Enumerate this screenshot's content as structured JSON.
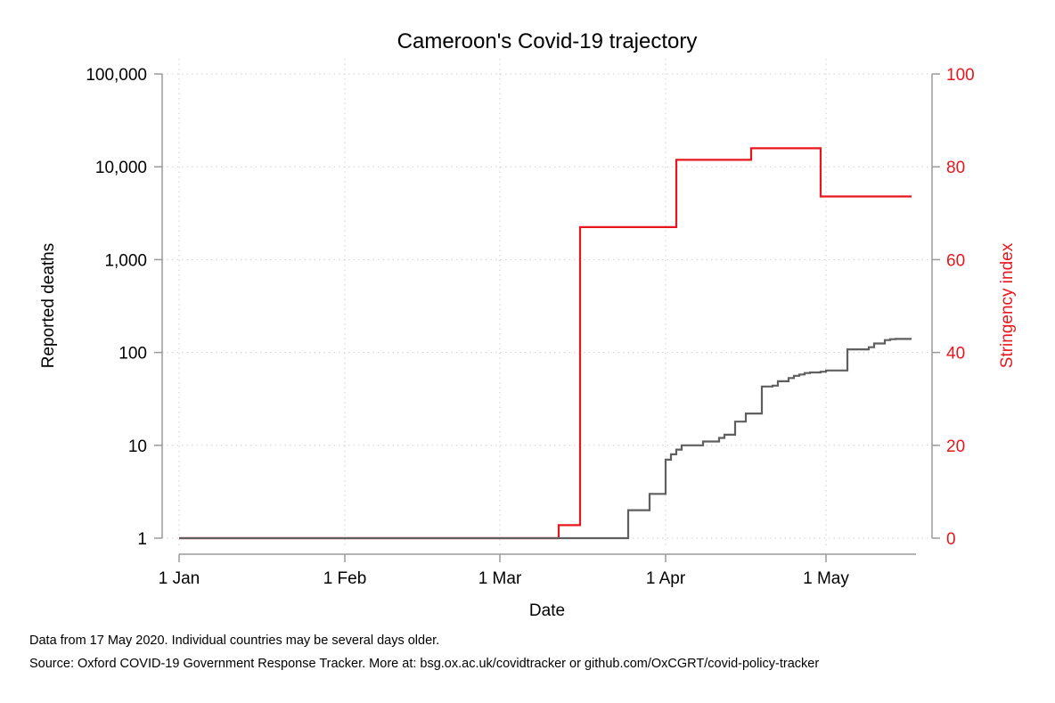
{
  "chart_data": {
    "type": "line",
    "title": "Cameroon's Covid-19 trajectory",
    "xlabel": "Date",
    "ylabel_left": "Reported deaths",
    "ylabel_right": "Stringency index",
    "x_ticks": [
      {
        "label": "1 Jan",
        "date": "2020-01-01"
      },
      {
        "label": "1 Feb",
        "date": "2020-02-01"
      },
      {
        "label": "1 Mar",
        "date": "2020-03-01"
      },
      {
        "label": "1 Apr",
        "date": "2020-04-01"
      },
      {
        "label": "1 May",
        "date": "2020-05-01"
      }
    ],
    "xlim": [
      "2020-01-01",
      "2020-05-17"
    ],
    "y_left": {
      "scale": "log",
      "ylim": [
        1,
        100000
      ],
      "ticks": [
        {
          "value": 1,
          "label": "1"
        },
        {
          "value": 10,
          "label": "10"
        },
        {
          "value": 100,
          "label": "100"
        },
        {
          "value": 1000,
          "label": "1,000"
        },
        {
          "value": 10000,
          "label": "10,000"
        },
        {
          "value": 100000,
          "label": "100,000"
        }
      ]
    },
    "y_right": {
      "scale": "linear",
      "ylim": [
        0,
        100
      ],
      "ticks": [
        {
          "value": 0,
          "label": "0"
        },
        {
          "value": 20,
          "label": "20"
        },
        {
          "value": 40,
          "label": "40"
        },
        {
          "value": 60,
          "label": "60"
        },
        {
          "value": 80,
          "label": "80"
        },
        {
          "value": 100,
          "label": "100"
        }
      ]
    },
    "grid": true,
    "series": [
      {
        "axis": "right",
        "color": "#e8161e",
        "step": true,
        "points": [
          [
            "2020-01-01",
            0
          ],
          [
            "2020-03-12",
            2.8
          ],
          [
            "2020-03-16",
            67
          ],
          [
            "2020-04-03",
            81.5
          ],
          [
            "2020-04-17",
            84
          ],
          [
            "2020-04-30",
            73.6
          ],
          [
            "2020-05-17",
            73.6
          ]
        ]
      },
      {
        "axis": "left",
        "color": "#5f5f5f",
        "step": true,
        "points": [
          [
            "2020-01-01",
            1
          ],
          [
            "2020-03-24",
            1
          ],
          [
            "2020-03-25",
            2
          ],
          [
            "2020-03-28",
            2
          ],
          [
            "2020-03-29",
            3
          ],
          [
            "2020-03-31",
            3
          ],
          [
            "2020-04-01",
            7
          ],
          [
            "2020-04-02",
            8
          ],
          [
            "2020-04-03",
            9
          ],
          [
            "2020-04-04",
            10
          ],
          [
            "2020-04-07",
            10
          ],
          [
            "2020-04-08",
            11
          ],
          [
            "2020-04-10",
            11
          ],
          [
            "2020-04-11",
            12
          ],
          [
            "2020-04-12",
            13
          ],
          [
            "2020-04-13",
            13
          ],
          [
            "2020-04-14",
            18
          ],
          [
            "2020-04-15",
            18
          ],
          [
            "2020-04-16",
            22
          ],
          [
            "2020-04-18",
            22
          ],
          [
            "2020-04-19",
            43
          ],
          [
            "2020-04-21",
            44
          ],
          [
            "2020-04-22",
            49
          ],
          [
            "2020-04-23",
            49
          ],
          [
            "2020-04-24",
            53
          ],
          [
            "2020-04-25",
            56
          ],
          [
            "2020-04-26",
            58
          ],
          [
            "2020-04-27",
            60
          ],
          [
            "2020-04-28",
            61
          ],
          [
            "2020-04-29",
            61
          ],
          [
            "2020-04-30",
            62
          ],
          [
            "2020-05-01",
            64
          ],
          [
            "2020-05-04",
            64
          ],
          [
            "2020-05-05",
            108
          ],
          [
            "2020-05-08",
            108
          ],
          [
            "2020-05-09",
            114
          ],
          [
            "2020-05-10",
            125
          ],
          [
            "2020-05-11",
            125
          ],
          [
            "2020-05-12",
            136
          ],
          [
            "2020-05-13",
            139
          ],
          [
            "2020-05-14",
            140
          ],
          [
            "2020-05-17",
            140
          ]
        ]
      }
    ]
  },
  "notes": {
    "line1": "Data from 17 May 2020. Individual countries may be several days older.",
    "line2": "Source: Oxford COVID-19 Government Response Tracker. More at: bsg.ox.ac.uk/covidtracker or github.com/OxCGRT/covid-policy-tracker"
  }
}
